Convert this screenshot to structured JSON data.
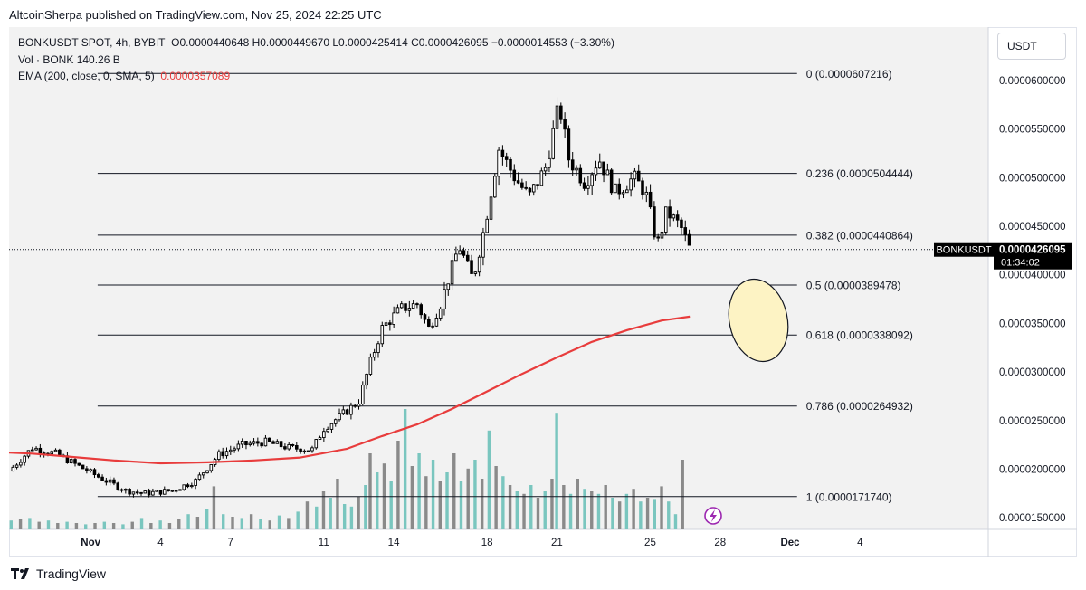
{
  "header": {
    "publisher_line": "AltcoinSherpa published on TradingView.com, Nov 25, 2024 22:25 UTC"
  },
  "legend": {
    "symbol": "BONKUSDT SPOT, 4h, BYBIT",
    "ohlc": "O0.0000440648  H0.0000449670  L0.0000425414  C0.0000426095  −0.0000014553 (−3.30%)",
    "volume": "Vol · BONK   140.26 B",
    "ema_label": "EMA (200, close, 0, SMA, 5)",
    "ema_value": "0.0000357089"
  },
  "currency": "USDT",
  "footer": {
    "brand": "TradingView"
  },
  "colors": {
    "ema": "#e83c3c",
    "fib": "#131722",
    "candle": "#000000",
    "vol_up": "#7ac6bf",
    "vol_down": "#8a8a8a",
    "ellipse_fill": "#fdf3c4",
    "ellipse_stroke": "#131722",
    "flash": "#9c27b0"
  },
  "chart_data": {
    "type": "candlestick",
    "ylim": [
      1.38e-05,
      6.55e-05
    ],
    "x_ticks": [
      {
        "label": "Nov",
        "x": 0
      },
      {
        "label": "4",
        "x": 3
      },
      {
        "label": "7",
        "x": 6
      },
      {
        "label": "11",
        "x": 10
      },
      {
        "label": "14",
        "x": 13
      },
      {
        "label": "18",
        "x": 17
      },
      {
        "label": "21",
        "x": 20
      },
      {
        "label": "25",
        "x": 24
      },
      {
        "label": "28",
        "x": 27
      },
      {
        "label": "Dec",
        "x": 30
      },
      {
        "label": "4",
        "x": 33
      }
    ],
    "xlim": [
      -3.5,
      38.5
    ],
    "y_ticks": [
      {
        "label": "0.0000600000",
        "v": 6e-05
      },
      {
        "label": "0.0000550000",
        "v": 5.5e-05
      },
      {
        "label": "0.0000500000",
        "v": 5e-05
      },
      {
        "label": "0.0000450000",
        "v": 4.5e-05
      },
      {
        "label": "0.0000400000",
        "v": 4e-05
      },
      {
        "label": "0.0000350000",
        "v": 3.5e-05
      },
      {
        "label": "0.0000300000",
        "v": 3e-05
      },
      {
        "label": "0.0000250000",
        "v": 2.5e-05
      },
      {
        "label": "0.0000200000",
        "v": 2e-05
      },
      {
        "label": "0.0000150000",
        "v": 1.5e-05
      }
    ],
    "fib_levels": [
      {
        "label": "0 (0.0000607216)",
        "v": 6.07216e-05
      },
      {
        "label": "0.236 (0.0000504444)",
        "v": 5.04444e-05
      },
      {
        "label": "0.382 (0.0000440864)",
        "v": 4.40864e-05
      },
      {
        "label": "0.5 (0.0000389478)",
        "v": 3.89478e-05
      },
      {
        "label": "0.618 (0.0000338092)",
        "v": 3.38092e-05
      },
      {
        "label": "0.786 (0.0000264932)",
        "v": 2.64932e-05
      },
      {
        "label": "1 (0.0000171740)",
        "v": 1.7174e-05
      }
    ],
    "fib_x_range": [
      0.3,
      30.3
    ],
    "last_price": {
      "symbol": "BONKUSDT",
      "value": "0.0000426095",
      "countdown": "01:34:02",
      "v": 4.26095e-05
    },
    "anchors": [
      [
        -3.5,
        1.98e-05
      ],
      [
        -2.5,
        2.22e-05
      ],
      [
        -1.5,
        2.16e-05
      ],
      [
        -0.5,
        2.03e-05
      ],
      [
        0.5,
        1.9e-05
      ],
      [
        1.5,
        1.78e-05
      ],
      [
        2.3,
        1.75e-05
      ],
      [
        3.5,
        1.78e-05
      ],
      [
        4.5,
        1.88e-05
      ],
      [
        5.5,
        2.15e-05
      ],
      [
        6.5,
        2.25e-05
      ],
      [
        7.5,
        2.28e-05
      ],
      [
        8.5,
        2.22e-05
      ],
      [
        9.5,
        2.2e-05
      ],
      [
        10.0,
        2.42e-05
      ],
      [
        11.0,
        2.6e-05
      ],
      [
        11.5,
        2.7e-05
      ],
      [
        12.0,
        3.1e-05
      ],
      [
        12.5,
        3.45e-05
      ],
      [
        13.3,
        3.65e-05
      ],
      [
        14.0,
        3.7e-05
      ],
      [
        14.5,
        3.45e-05
      ],
      [
        15.0,
        3.7e-05
      ],
      [
        15.8,
        4.3e-05
      ],
      [
        16.4,
        3.95e-05
      ],
      [
        16.9,
        4.5e-05
      ],
      [
        17.5,
        5.3e-05
      ],
      [
        18.2,
        5e-05
      ],
      [
        18.8,
        4.8e-05
      ],
      [
        19.5,
        5.1e-05
      ],
      [
        20.1,
        5.75e-05
      ],
      [
        20.5,
        5.2e-05
      ],
      [
        21.2,
        4.95e-05
      ],
      [
        21.8,
        5.2e-05
      ],
      [
        22.5,
        4.85e-05
      ],
      [
        23.3,
        5e-05
      ],
      [
        23.8,
        4.85e-05
      ],
      [
        24.3,
        4.3e-05
      ],
      [
        24.7,
        4.65e-05
      ],
      [
        25.3,
        4.5e-05
      ],
      [
        25.7,
        4.26e-05
      ]
    ],
    "candle_step": 0.1667,
    "ema_points": [
      [
        -3.5,
        2.17e-05
      ],
      [
        -2.5,
        2.16e-05
      ],
      [
        -1,
        2.13e-05
      ],
      [
        1,
        2.09e-05
      ],
      [
        3,
        2.06e-05
      ],
      [
        5,
        2.07e-05
      ],
      [
        7,
        2.09e-05
      ],
      [
        9,
        2.12e-05
      ],
      [
        11,
        2.21e-05
      ],
      [
        12.5,
        2.34e-05
      ],
      [
        14,
        2.46e-05
      ],
      [
        15.5,
        2.62e-05
      ],
      [
        17,
        2.8e-05
      ],
      [
        18.5,
        2.98e-05
      ],
      [
        20,
        3.15e-05
      ],
      [
        21.5,
        3.31e-05
      ],
      [
        23,
        3.43e-05
      ],
      [
        24.5,
        3.53e-05
      ],
      [
        25.7,
        3.57e-05
      ]
    ],
    "volume": {
      "max": 100,
      "bars": [
        [
          -3.4,
          7,
          1
        ],
        [
          -3.0,
          8,
          0
        ],
        [
          -2.6,
          9,
          1
        ],
        [
          -2.2,
          6,
          0
        ],
        [
          -1.8,
          7,
          1
        ],
        [
          -1.4,
          5,
          0
        ],
        [
          -1.0,
          6,
          1
        ],
        [
          -0.6,
          5,
          0
        ],
        [
          -0.2,
          4,
          1
        ],
        [
          0.2,
          5,
          0
        ],
        [
          0.6,
          6,
          1
        ],
        [
          1.0,
          5,
          0
        ],
        [
          1.4,
          4,
          1
        ],
        [
          1.8,
          6,
          0
        ],
        [
          2.2,
          9,
          1
        ],
        [
          2.6,
          5,
          0
        ],
        [
          3.0,
          7,
          1
        ],
        [
          3.4,
          5,
          0
        ],
        [
          3.8,
          8,
          0
        ],
        [
          4.2,
          12,
          1
        ],
        [
          4.6,
          10,
          0
        ],
        [
          5.0,
          16,
          1
        ],
        [
          5.3,
          34,
          0
        ],
        [
          5.7,
          12,
          1
        ],
        [
          6.1,
          10,
          0
        ],
        [
          6.5,
          9,
          1
        ],
        [
          6.9,
          12,
          0
        ],
        [
          7.3,
          8,
          1
        ],
        [
          7.7,
          7,
          0
        ],
        [
          8.1,
          11,
          1
        ],
        [
          8.5,
          9,
          0
        ],
        [
          8.9,
          14,
          1
        ],
        [
          9.3,
          22,
          0
        ],
        [
          9.7,
          18,
          1
        ],
        [
          10.0,
          30,
          0
        ],
        [
          10.3,
          25,
          1
        ],
        [
          10.6,
          40,
          0
        ],
        [
          10.9,
          20,
          1
        ],
        [
          11.2,
          18,
          1
        ],
        [
          11.5,
          26,
          0
        ],
        [
          11.8,
          35,
          1
        ],
        [
          12.0,
          60,
          0
        ],
        [
          12.3,
          45,
          1
        ],
        [
          12.6,
          52,
          0
        ],
        [
          12.9,
          38,
          1
        ],
        [
          13.2,
          70,
          0
        ],
        [
          13.5,
          95,
          1
        ],
        [
          13.8,
          50,
          0
        ],
        [
          14.1,
          60,
          1
        ],
        [
          14.4,
          42,
          0
        ],
        [
          14.7,
          55,
          1
        ],
        [
          15.0,
          38,
          0
        ],
        [
          15.3,
          45,
          1
        ],
        [
          15.6,
          60,
          0
        ],
        [
          15.9,
          38,
          1
        ],
        [
          16.2,
          48,
          0
        ],
        [
          16.5,
          55,
          1
        ],
        [
          16.8,
          40,
          0
        ],
        [
          17.1,
          78,
          1
        ],
        [
          17.4,
          50,
          0
        ],
        [
          17.7,
          42,
          1
        ],
        [
          18.0,
          35,
          0
        ],
        [
          18.3,
          30,
          1
        ],
        [
          18.6,
          28,
          0
        ],
        [
          18.9,
          35,
          1
        ],
        [
          19.2,
          25,
          0
        ],
        [
          19.5,
          30,
          1
        ],
        [
          19.8,
          40,
          0
        ],
        [
          20.0,
          92,
          1
        ],
        [
          20.3,
          35,
          0
        ],
        [
          20.6,
          28,
          1
        ],
        [
          20.9,
          40,
          0
        ],
        [
          21.2,
          32,
          1
        ],
        [
          21.5,
          30,
          0
        ],
        [
          21.8,
          28,
          1
        ],
        [
          22.1,
          35,
          0
        ],
        [
          22.4,
          25,
          1
        ],
        [
          22.7,
          22,
          0
        ],
        [
          23.0,
          28,
          1
        ],
        [
          23.3,
          32,
          0
        ],
        [
          23.6,
          22,
          1
        ],
        [
          23.9,
          25,
          0
        ],
        [
          24.2,
          24,
          1
        ],
        [
          24.5,
          34,
          0
        ],
        [
          24.8,
          22,
          1
        ],
        [
          25.1,
          12,
          1
        ],
        [
          25.4,
          55,
          0
        ]
      ]
    }
  }
}
